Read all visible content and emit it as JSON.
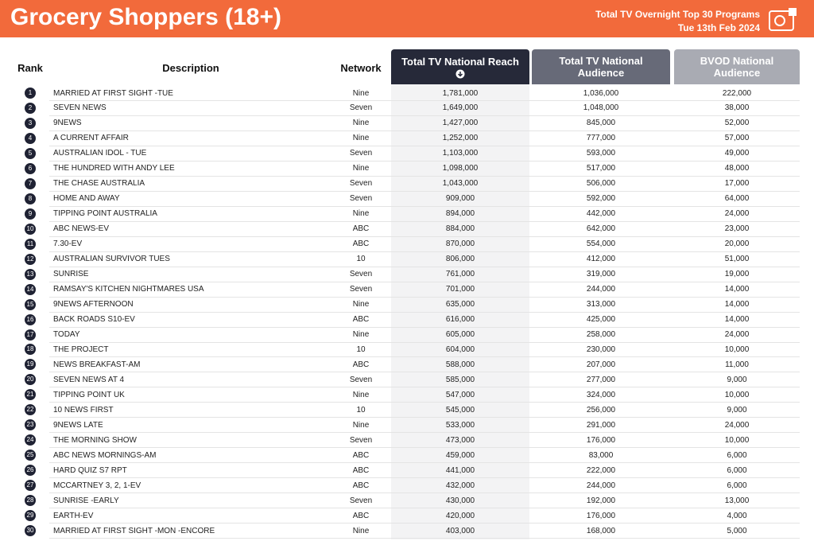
{
  "header": {
    "title": "Grocery Shoppers (18+)",
    "subtitle": "Total TV Overnight Top 30 Programs",
    "date": "Tue 13th Feb 2024"
  },
  "table": {
    "columns": [
      "Rank",
      "Description",
      "Network",
      "Total TV National Reach",
      "Total TV National Audience",
      "BVOD National Audience"
    ],
    "rows": [
      [
        "1",
        "MARRIED AT FIRST SIGHT -TUE",
        "Nine",
        "1,781,000",
        "1,036,000",
        "222,000"
      ],
      [
        "2",
        "SEVEN NEWS",
        "Seven",
        "1,649,000",
        "1,048,000",
        "38,000"
      ],
      [
        "3",
        "9NEWS",
        "Nine",
        "1,427,000",
        "845,000",
        "52,000"
      ],
      [
        "4",
        "A CURRENT AFFAIR",
        "Nine",
        "1,252,000",
        "777,000",
        "57,000"
      ],
      [
        "5",
        "AUSTRALIAN IDOL - TUE",
        "Seven",
        "1,103,000",
        "593,000",
        "49,000"
      ],
      [
        "6",
        "THE HUNDRED WITH ANDY LEE",
        "Nine",
        "1,098,000",
        "517,000",
        "48,000"
      ],
      [
        "7",
        "THE CHASE AUSTRALIA",
        "Seven",
        "1,043,000",
        "506,000",
        "17,000"
      ],
      [
        "8",
        "HOME AND AWAY",
        "Seven",
        "909,000",
        "592,000",
        "64,000"
      ],
      [
        "9",
        "TIPPING POINT AUSTRALIA",
        "Nine",
        "894,000",
        "442,000",
        "24,000"
      ],
      [
        "10",
        "ABC NEWS-EV",
        "ABC",
        "884,000",
        "642,000",
        "23,000"
      ],
      [
        "11",
        "7.30-EV",
        "ABC",
        "870,000",
        "554,000",
        "20,000"
      ],
      [
        "12",
        "AUSTRALIAN SURVIVOR TUES",
        "10",
        "806,000",
        "412,000",
        "51,000"
      ],
      [
        "13",
        "SUNRISE",
        "Seven",
        "761,000",
        "319,000",
        "19,000"
      ],
      [
        "14",
        "RAMSAY'S KITCHEN NIGHTMARES USA",
        "Seven",
        "701,000",
        "244,000",
        "14,000"
      ],
      [
        "15",
        "9NEWS AFTERNOON",
        "Nine",
        "635,000",
        "313,000",
        "14,000"
      ],
      [
        "16",
        "BACK ROADS S10-EV",
        "ABC",
        "616,000",
        "425,000",
        "14,000"
      ],
      [
        "17",
        "TODAY",
        "Nine",
        "605,000",
        "258,000",
        "24,000"
      ],
      [
        "18",
        "THE PROJECT",
        "10",
        "604,000",
        "230,000",
        "10,000"
      ],
      [
        "19",
        "NEWS BREAKFAST-AM",
        "ABC",
        "588,000",
        "207,000",
        "11,000"
      ],
      [
        "20",
        "SEVEN NEWS AT 4",
        "Seven",
        "585,000",
        "277,000",
        "9,000"
      ],
      [
        "21",
        "TIPPING POINT UK",
        "Nine",
        "547,000",
        "324,000",
        "10,000"
      ],
      [
        "22",
        "10 NEWS FIRST",
        "10",
        "545,000",
        "256,000",
        "9,000"
      ],
      [
        "23",
        "9NEWS LATE",
        "Nine",
        "533,000",
        "291,000",
        "24,000"
      ],
      [
        "24",
        "THE MORNING SHOW",
        "Seven",
        "473,000",
        "176,000",
        "10,000"
      ],
      [
        "25",
        "ABC NEWS MORNINGS-AM",
        "ABC",
        "459,000",
        "83,000",
        "6,000"
      ],
      [
        "26",
        "HARD QUIZ S7 RPT",
        "ABC",
        "441,000",
        "222,000",
        "6,000"
      ],
      [
        "27",
        "MCCARTNEY 3, 2, 1-EV",
        "ABC",
        "432,000",
        "244,000",
        "6,000"
      ],
      [
        "28",
        "SUNRISE -EARLY",
        "Seven",
        "430,000",
        "192,000",
        "13,000"
      ],
      [
        "29",
        "EARTH-EV",
        "ABC",
        "420,000",
        "176,000",
        "4,000"
      ],
      [
        "30",
        "MARRIED AT FIRST SIGHT -MON -ENCORE",
        "Nine",
        "403,000",
        "168,000",
        "5,000"
      ]
    ]
  }
}
